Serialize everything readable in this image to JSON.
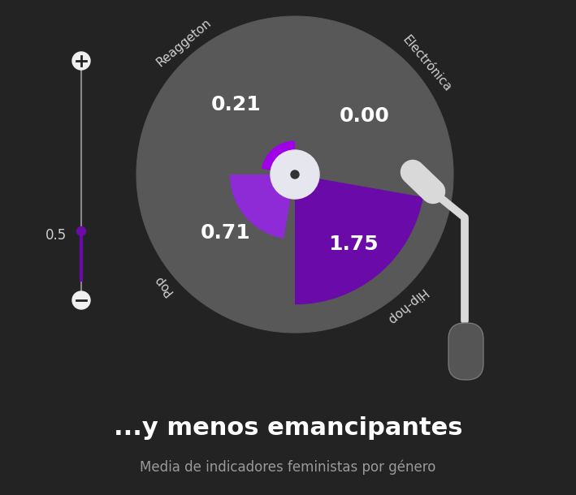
{
  "chart_data": {
    "type": "polar_bar",
    "title": "...y menos emancipantes",
    "subtitle": "Media de indicadores feministas por género",
    "categories": [
      "Reaggeton",
      "Electrónica",
      "Hip-hop",
      "Pop"
    ],
    "values": [
      0.21,
      0.0,
      1.75,
      0.71
    ],
    "value_labels": [
      "0.21",
      "0.00",
      "1.75",
      "0.71"
    ],
    "colors": [
      "#a000e8",
      "#7a1fc0",
      "#6a0aa8",
      "#8e2bd6"
    ],
    "ylim": [
      0,
      2.2
    ],
    "data_labels": true,
    "tick_labels": false,
    "slider_value": 0.5
  }
}
